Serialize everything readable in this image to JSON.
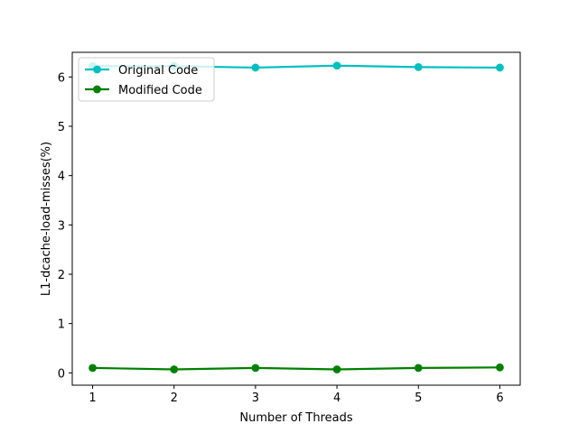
{
  "chart_data": {
    "type": "line",
    "title": "",
    "xlabel": "Number of Threads",
    "ylabel": "L1-dcache-load-misses(%)",
    "x": [
      1,
      2,
      3,
      4,
      5,
      6
    ],
    "xlim": [
      0.75,
      6.25
    ],
    "ylim": [
      -0.25,
      6.5
    ],
    "xticks": [
      1,
      2,
      3,
      4,
      5,
      6
    ],
    "yticks": [
      0,
      1,
      2,
      3,
      4,
      5,
      6
    ],
    "grid": false,
    "legend_position": "top-left",
    "series": [
      {
        "name": "Original Code",
        "color": "#00bfbf",
        "marker": "circle",
        "values": [
          6.22,
          6.22,
          6.19,
          6.23,
          6.2,
          6.19
        ]
      },
      {
        "name": "Modified Code",
        "color": "#008000",
        "marker": "circle",
        "values": [
          0.1,
          0.07,
          0.1,
          0.07,
          0.1,
          0.11
        ]
      }
    ]
  }
}
